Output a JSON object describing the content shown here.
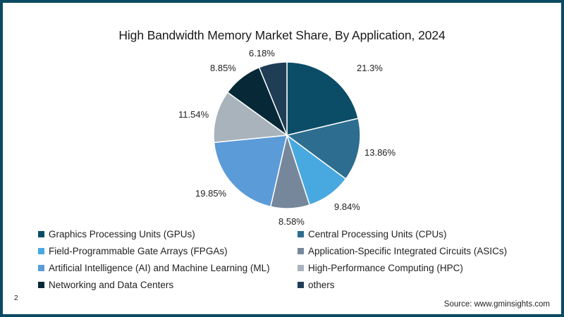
{
  "chart_data": {
    "type": "pie",
    "title": "High Bandwidth Memory Market Share, By Application, 2024",
    "categories": [
      "Graphics Processing Units (GPUs)",
      "Central Processing Units (CPUs)",
      "Field-Programmable Gate Arrays (FPGAs)",
      "Application-Specific Integrated Circuits (ASICs)",
      "Artificial Intelligence (AI) and Machine Learning (ML)",
      "High-Performance Computing (HPC)",
      "Networking and Data Centers",
      "others"
    ],
    "values": [
      21.3,
      13.86,
      9.84,
      8.58,
      19.85,
      11.54,
      8.85,
      6.18
    ],
    "value_labels": [
      "21.3%",
      "13.86%",
      "9.84%",
      "8.58%",
      "19.85%",
      "11.54%",
      "8.85%",
      "6.18%"
    ],
    "colors": [
      "#0b4d66",
      "#2d6d8f",
      "#48a9e0",
      "#77879b",
      "#5b9bd8",
      "#a8b3bc",
      "#062837",
      "#1f3d55"
    ],
    "start_angle_deg": 0,
    "direction": "clockwise",
    "legend_position": "bottom"
  },
  "title": "High Bandwidth Memory Market Share, By Application, 2024",
  "legend": [
    {
      "label": "Graphics Processing Units (GPUs)",
      "color": "#0b4d66"
    },
    {
      "label": "Central Processing Units (CPUs)",
      "color": "#2d6d8f"
    },
    {
      "label": "Field-Programmable Gate Arrays (FPGAs)",
      "color": "#48a9e0"
    },
    {
      "label": "Application-Specific Integrated Circuits (ASICs)",
      "color": "#77879b"
    },
    {
      "label": "Artificial Intelligence (AI) and Machine Learning (ML)",
      "color": "#5b9bd8"
    },
    {
      "label": "High-Performance Computing (HPC)",
      "color": "#a8b3bc"
    },
    {
      "label": "Networking and Data Centers",
      "color": "#062837"
    },
    {
      "label": "others",
      "color": "#1f3d55"
    }
  ],
  "labels": [
    "21.3%",
    "13.86%",
    "9.84%",
    "8.58%",
    "19.85%",
    "11.54%",
    "8.85%",
    "6.18%"
  ],
  "page_number": "2",
  "source": "Source: www.gminsights.com",
  "frame_color": "#0b4a63"
}
